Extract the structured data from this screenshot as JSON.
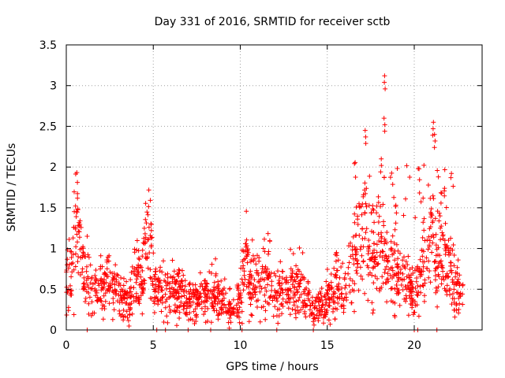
{
  "chart_data": {
    "type": "scatter",
    "title": "Day 331 of 2016, SRMTID for receiver sctb",
    "xlabel": "GPS time / hours",
    "ylabel": "SRMTID / TECUs",
    "xlim": [
      0,
      23.9
    ],
    "ylim": [
      0,
      3.5
    ],
    "x_ticks": [
      0,
      5,
      10,
      15,
      20
    ],
    "y_ticks": [
      0,
      0.5,
      1,
      1.5,
      2,
      2.5,
      3,
      3.5
    ],
    "x_tick_labels": [
      "0",
      "5",
      "10",
      "15",
      "20"
    ],
    "y_tick_labels": [
      "0",
      "0.5",
      "1",
      "1.5",
      "2",
      "2.5",
      "3",
      "3.5"
    ],
    "grid": true,
    "marker": "plus",
    "marker_color": "#ff0000",
    "series": [
      {
        "name": "SRMTID",
        "profile_description": "approximate envelope of the scatter cloud, x in hours, y in TECU",
        "x": [
          0.0,
          0.3,
          0.6,
          0.7,
          1.0,
          1.5,
          2.0,
          2.5,
          3.0,
          3.5,
          4.0,
          4.4,
          4.7,
          5.0,
          5.5,
          6.0,
          6.5,
          7.0,
          7.5,
          8.0,
          8.5,
          9.0,
          9.5,
          10.0,
          10.3,
          10.7,
          11.0,
          11.5,
          12.0,
          12.5,
          13.0,
          13.5,
          14.0,
          14.5,
          15.0,
          15.5,
          16.0,
          16.5,
          17.0,
          17.3,
          17.7,
          18.0,
          18.3,
          18.6,
          19.0,
          19.5,
          20.0,
          20.5,
          21.0,
          21.3,
          21.7,
          22.0,
          22.5,
          22.8
        ],
        "y": [
          0.6,
          0.7,
          1.3,
          1.1,
          0.7,
          0.5,
          0.55,
          0.6,
          0.4,
          0.35,
          0.55,
          0.8,
          1.2,
          0.55,
          0.5,
          0.5,
          0.45,
          0.4,
          0.35,
          0.4,
          0.5,
          0.35,
          0.3,
          0.35,
          0.9,
          0.55,
          0.6,
          0.7,
          0.5,
          0.5,
          0.5,
          0.55,
          0.3,
          0.25,
          0.4,
          0.6,
          0.5,
          0.9,
          1.2,
          1.1,
          0.8,
          1.1,
          0.9,
          0.7,
          0.7,
          0.6,
          0.45,
          0.7,
          1.0,
          0.9,
          1.0,
          0.7,
          0.55,
          0.4
        ],
        "notable_peaks": [
          {
            "x": 17.2,
            "y": 2.45
          },
          {
            "x": 18.3,
            "y": 3.12
          },
          {
            "x": 18.3,
            "y": 2.6
          },
          {
            "x": 21.1,
            "y": 2.55
          },
          {
            "x": 21.2,
            "y": 2.4
          },
          {
            "x": 18.1,
            "y": 2.1
          }
        ],
        "zero_values_at_x": [
          1.2,
          5.2,
          5.7,
          7.0,
          8.3,
          10.1,
          12.1,
          14.2,
          20.0,
          20.2,
          21.3
        ]
      }
    ]
  }
}
